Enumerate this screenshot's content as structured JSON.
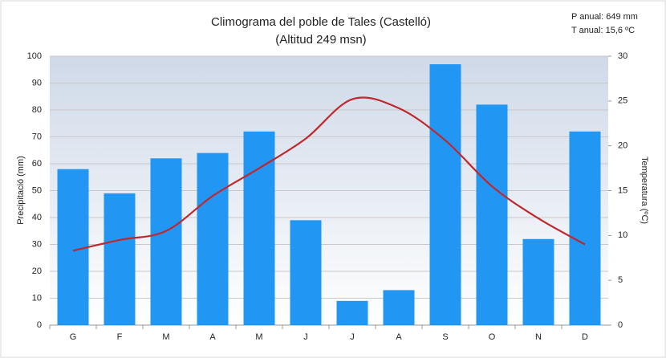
{
  "chart_data": {
    "type": "bar",
    "title": "Climograma del poble de Tales (Castelló)",
    "subtitle": "(Altitud 249 msn)",
    "annotations": [
      "P anual: 649 mm",
      "T anual: 15,6 ºC"
    ],
    "y_label": "Precipitació (mm)",
    "y2_label": "Temperatura (ºC)",
    "categories": [
      "G",
      "F",
      "M",
      "A",
      "M",
      "J",
      "J",
      "A",
      "S",
      "O",
      "N",
      "D"
    ],
    "series": [
      {
        "type": "bar",
        "color": "#2196f3",
        "values": [
          58,
          49,
          62,
          64,
          72,
          39,
          9,
          13,
          97,
          82,
          32,
          72
        ]
      },
      {
        "type": "line",
        "axis": "y2",
        "color": "#c0282d",
        "values": [
          8.3,
          9.5,
          10.5,
          14.4,
          17.5,
          20.8,
          25.2,
          24.2,
          20.6,
          15.5,
          11.9,
          9.0
        ]
      }
    ],
    "ylim": [
      0,
      100
    ],
    "yticks": [
      0,
      10,
      20,
      30,
      40,
      50,
      60,
      70,
      80,
      90,
      100
    ],
    "y2lim": [
      0,
      30
    ],
    "y2ticks": [
      0,
      5,
      10,
      15,
      20,
      25,
      30
    ],
    "grid": true
  }
}
